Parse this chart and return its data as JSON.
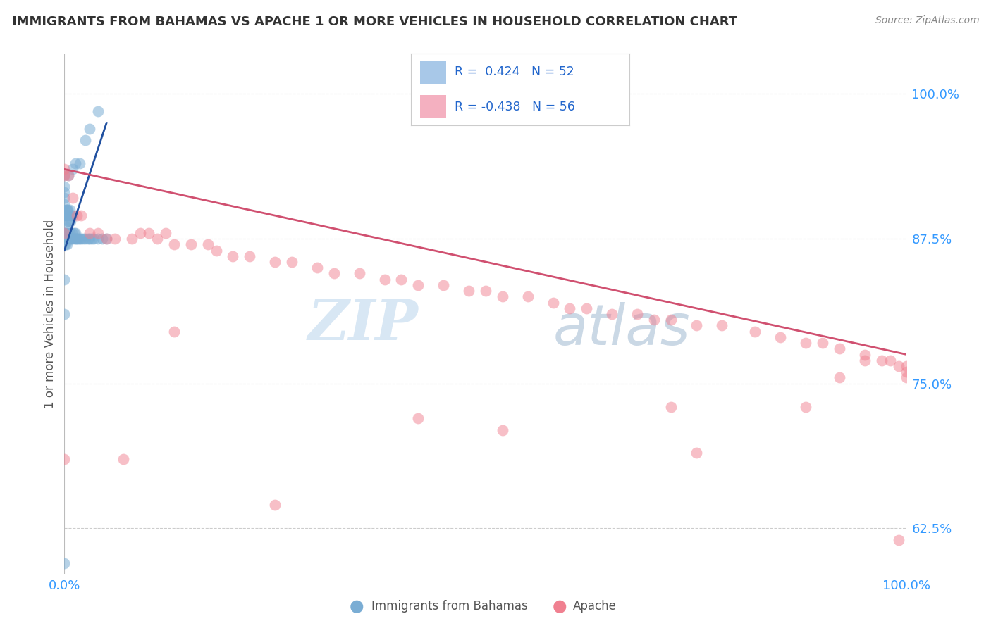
{
  "title": "IMMIGRANTS FROM BAHAMAS VS APACHE 1 OR MORE VEHICLES IN HOUSEHOLD CORRELATION CHART",
  "source_text": "Source: ZipAtlas.com",
  "ylabel": "1 or more Vehicles in Household",
  "xlim": [
    0.0,
    1.0
  ],
  "ylim": [
    0.585,
    1.035
  ],
  "x_tick_labels": [
    "0.0%",
    "100.0%"
  ],
  "y_tick_labels": [
    "62.5%",
    "75.0%",
    "87.5%",
    "100.0%"
  ],
  "y_tick_positions": [
    0.625,
    0.75,
    0.875,
    1.0
  ],
  "blue_scatter_x": [
    0.0,
    0.0,
    0.0,
    0.0,
    0.0,
    0.0,
    0.0,
    0.0,
    0.0,
    0.0,
    0.001,
    0.001,
    0.001,
    0.002,
    0.002,
    0.002,
    0.003,
    0.003,
    0.003,
    0.003,
    0.004,
    0.004,
    0.004,
    0.005,
    0.005,
    0.005,
    0.006,
    0.006,
    0.007,
    0.007,
    0.008,
    0.008,
    0.009,
    0.01,
    0.01,
    0.011,
    0.012,
    0.013,
    0.014,
    0.015,
    0.016,
    0.018,
    0.02,
    0.022,
    0.025,
    0.028,
    0.03,
    0.032,
    0.035,
    0.04,
    0.045,
    0.05
  ],
  "blue_scatter_y": [
    0.84,
    0.87,
    0.88,
    0.895,
    0.9,
    0.905,
    0.91,
    0.915,
    0.92,
    0.93,
    0.87,
    0.88,
    0.895,
    0.88,
    0.895,
    0.9,
    0.87,
    0.885,
    0.895,
    0.9,
    0.88,
    0.89,
    0.9,
    0.875,
    0.89,
    0.895,
    0.88,
    0.9,
    0.875,
    0.89,
    0.875,
    0.895,
    0.88,
    0.875,
    0.895,
    0.88,
    0.875,
    0.88,
    0.875,
    0.875,
    0.875,
    0.875,
    0.875,
    0.875,
    0.875,
    0.875,
    0.875,
    0.875,
    0.875,
    0.875,
    0.875,
    0.875
  ],
  "blue_extra_x": [
    0.0,
    0.0,
    0.005,
    0.01,
    0.013,
    0.018,
    0.025,
    0.03,
    0.04
  ],
  "blue_extra_y": [
    0.595,
    0.81,
    0.93,
    0.935,
    0.94,
    0.94,
    0.96,
    0.97,
    0.985
  ],
  "pink_scatter_x": [
    0.0,
    0.0,
    0.0,
    0.005,
    0.01,
    0.015,
    0.02,
    0.03,
    0.04,
    0.05,
    0.06,
    0.08,
    0.09,
    0.1,
    0.11,
    0.12,
    0.13,
    0.15,
    0.17,
    0.18,
    0.2,
    0.22,
    0.25,
    0.27,
    0.3,
    0.32,
    0.35,
    0.38,
    0.4,
    0.42,
    0.45,
    0.48,
    0.5,
    0.52,
    0.55,
    0.58,
    0.6,
    0.62,
    0.65,
    0.68,
    0.7,
    0.72,
    0.75,
    0.78,
    0.82,
    0.85,
    0.88,
    0.9,
    0.92,
    0.95,
    0.97,
    0.98,
    0.99,
    1.0,
    1.0,
    1.0
  ],
  "pink_scatter_y": [
    0.935,
    0.93,
    0.88,
    0.93,
    0.91,
    0.895,
    0.895,
    0.88,
    0.88,
    0.875,
    0.875,
    0.875,
    0.88,
    0.88,
    0.875,
    0.88,
    0.87,
    0.87,
    0.87,
    0.865,
    0.86,
    0.86,
    0.855,
    0.855,
    0.85,
    0.845,
    0.845,
    0.84,
    0.84,
    0.835,
    0.835,
    0.83,
    0.83,
    0.825,
    0.825,
    0.82,
    0.815,
    0.815,
    0.81,
    0.81,
    0.805,
    0.805,
    0.8,
    0.8,
    0.795,
    0.79,
    0.785,
    0.785,
    0.78,
    0.775,
    0.77,
    0.77,
    0.765,
    0.765,
    0.76,
    0.755
  ],
  "pink_extra_x": [
    0.0,
    0.07,
    0.13,
    0.25,
    0.42,
    0.52,
    0.72,
    0.75,
    0.88,
    0.92,
    0.95,
    0.99
  ],
  "pink_extra_y": [
    0.685,
    0.685,
    0.795,
    0.645,
    0.72,
    0.71,
    0.73,
    0.69,
    0.73,
    0.755,
    0.77,
    0.615
  ],
  "blue_line_x": [
    0.0,
    0.05
  ],
  "blue_line_y": [
    0.865,
    0.975
  ],
  "pink_line_x": [
    0.0,
    1.0
  ],
  "pink_line_y": [
    0.935,
    0.775
  ],
  "scatter_color_blue": "#7aadd4",
  "scatter_color_pink": "#f08090",
  "line_color_blue": "#2050a0",
  "line_color_pink": "#d05070",
  "watermark_zip": "ZIP",
  "watermark_atlas": "atlas",
  "background_color": "#ffffff",
  "grid_color": "#cccccc",
  "legend_blue_label": "R =  0.424   N = 52",
  "legend_pink_label": "R = -0.438   N = 56",
  "legend_blue_color": "#a8c8e8",
  "legend_pink_color": "#f4b0c0",
  "bottom_label_blue": "Immigrants from Bahamas",
  "bottom_label_pink": "Apache"
}
